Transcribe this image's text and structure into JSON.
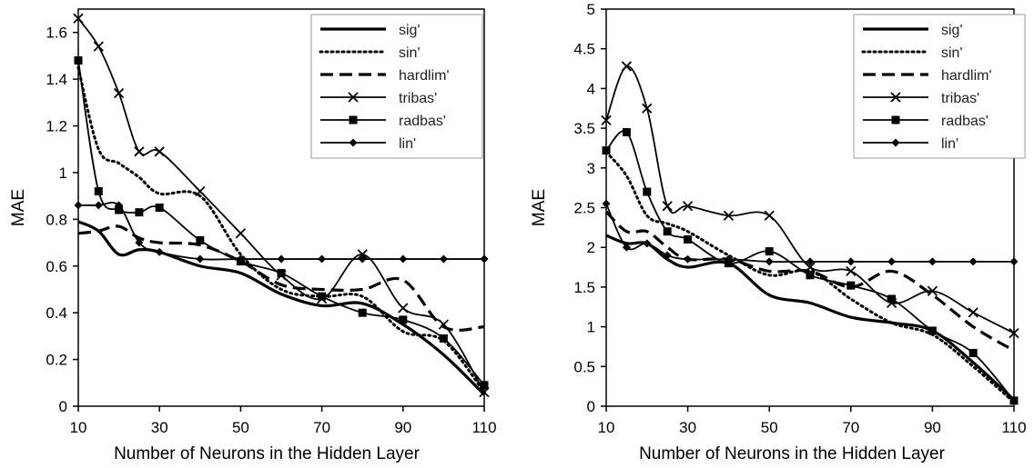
{
  "chart_data": [
    {
      "type": "line",
      "title": "",
      "xlabel": "Number of Neurons in the Hidden Layer",
      "ylabel": "MAE",
      "xlim": [
        10,
        110
      ],
      "ylim": [
        0,
        1.7
      ],
      "xticks": [
        10,
        30,
        50,
        70,
        90,
        110
      ],
      "yticks": [
        0,
        0.2,
        0.4,
        0.6,
        0.8,
        1,
        1.2,
        1.4,
        1.6
      ],
      "grid": false,
      "legend_position": "top-right",
      "x": [
        10,
        15,
        20,
        25,
        30,
        40,
        50,
        60,
        70,
        80,
        90,
        100,
        110
      ],
      "series": [
        {
          "name": "sig'",
          "style": "solid-thick",
          "marker": "none",
          "values": [
            0.79,
            0.75,
            0.65,
            0.67,
            0.66,
            0.6,
            0.57,
            0.48,
            0.43,
            0.44,
            0.35,
            0.22,
            0.05
          ]
        },
        {
          "name": "sin'",
          "style": "dotted",
          "marker": "none",
          "values": [
            1.45,
            1.1,
            1.04,
            0.98,
            0.91,
            0.9,
            0.65,
            0.5,
            0.47,
            0.47,
            0.32,
            0.28,
            0.06
          ]
        },
        {
          "name": "hardlim'",
          "style": "dashed",
          "marker": "none",
          "values": [
            0.74,
            0.75,
            0.77,
            0.72,
            0.7,
            0.69,
            0.62,
            0.52,
            0.5,
            0.5,
            0.54,
            0.34,
            0.34
          ]
        },
        {
          "name": "tribas'",
          "style": "solid-thin",
          "marker": "x",
          "values": [
            1.66,
            1.54,
            1.34,
            1.09,
            1.09,
            0.92,
            0.74,
            0.56,
            0.46,
            0.65,
            0.42,
            0.35,
            0.06
          ]
        },
        {
          "name": "radbas'",
          "style": "solid-thin",
          "marker": "square",
          "values": [
            1.48,
            0.92,
            0.84,
            0.83,
            0.85,
            0.71,
            0.62,
            0.57,
            0.47,
            0.4,
            0.37,
            0.29,
            0.09
          ]
        },
        {
          "name": "lin'",
          "style": "solid-thin",
          "marker": "diamond",
          "values": [
            0.86,
            0.86,
            0.86,
            0.7,
            0.66,
            0.63,
            0.63,
            0.63,
            0.63,
            0.63,
            0.63,
            0.63,
            0.63
          ]
        }
      ]
    },
    {
      "type": "line",
      "title": "",
      "xlabel": "Number of Neurons in the Hidden Layer",
      "ylabel": "MAE",
      "xlim": [
        10,
        110
      ],
      "ylim": [
        0,
        5
      ],
      "xticks": [
        10,
        30,
        50,
        70,
        90,
        110
      ],
      "yticks": [
        0,
        0.5,
        1,
        1.5,
        2,
        2.5,
        3,
        3.5,
        4,
        4.5,
        5
      ],
      "grid": false,
      "legend_position": "top-right",
      "x": [
        10,
        15,
        20,
        25,
        30,
        40,
        50,
        60,
        70,
        80,
        90,
        100,
        110
      ],
      "series": [
        {
          "name": "sig'",
          "style": "solid-thick",
          "marker": "none",
          "values": [
            2.15,
            2.05,
            2.05,
            1.85,
            1.75,
            1.8,
            1.4,
            1.3,
            1.12,
            1.05,
            0.95,
            0.55,
            0.08
          ]
        },
        {
          "name": "sin'",
          "style": "dotted",
          "marker": "none",
          "values": [
            3.2,
            2.9,
            2.4,
            2.3,
            2.2,
            1.9,
            1.65,
            1.7,
            1.35,
            1.05,
            0.9,
            0.5,
            0.05
          ]
        },
        {
          "name": "hardlim'",
          "style": "dashed",
          "marker": "none",
          "values": [
            2.45,
            2.2,
            2.2,
            2.0,
            1.85,
            1.85,
            1.7,
            1.7,
            1.5,
            1.7,
            1.4,
            1.0,
            0.7
          ]
        },
        {
          "name": "tribas'",
          "style": "solid-thin",
          "marker": "x",
          "values": [
            3.6,
            4.28,
            3.75,
            2.52,
            2.52,
            2.4,
            2.4,
            1.75,
            1.7,
            1.3,
            1.45,
            1.18,
            0.92
          ]
        },
        {
          "name": "radbas'",
          "style": "solid-thin",
          "marker": "square",
          "values": [
            3.22,
            3.45,
            2.7,
            2.2,
            2.1,
            1.8,
            1.95,
            1.65,
            1.52,
            1.35,
            0.95,
            0.67,
            0.07
          ]
        },
        {
          "name": "lin'",
          "style": "solid-thin",
          "marker": "diamond",
          "values": [
            2.55,
            2.0,
            2.05,
            1.9,
            1.85,
            1.85,
            1.82,
            1.82,
            1.82,
            1.82,
            1.82,
            1.82,
            1.82
          ]
        }
      ]
    }
  ]
}
